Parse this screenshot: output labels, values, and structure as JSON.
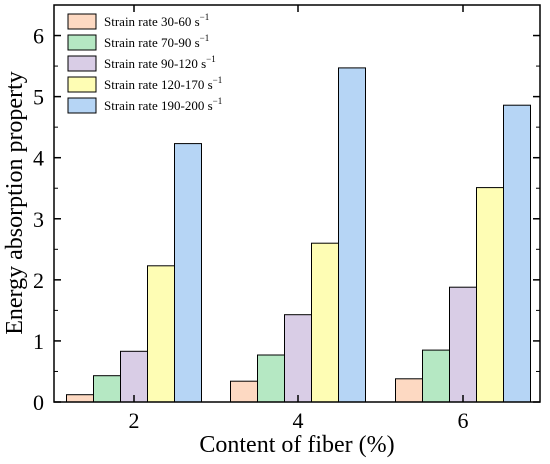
{
  "chart_data": {
    "type": "bar",
    "categories": [
      "2",
      "4",
      "6"
    ],
    "series": [
      {
        "name": "Strain rate 30-60 s",
        "superscript": "−1",
        "values": [
          0.12,
          0.34,
          0.38
        ],
        "color": "#fdd9c2"
      },
      {
        "name": "Strain rate 70-90 s",
        "superscript": "−1",
        "values": [
          0.43,
          0.77,
          0.85
        ],
        "color": "#b5e8c3"
      },
      {
        "name": "Strain rate 90-120 s",
        "superscript": "−1",
        "values": [
          0.83,
          1.43,
          1.88
        ],
        "color": "#d9cde6"
      },
      {
        "name": "Strain rate 120-170 s",
        "superscript": "−1",
        "values": [
          2.23,
          2.6,
          3.51
        ],
        "color": "#fefdb4"
      },
      {
        "name": "Strain rate 190-200 s",
        "superscript": "−1",
        "values": [
          4.23,
          5.47,
          4.86
        ],
        "color": "#b6d5f5"
      }
    ],
    "xlabel": "Content of fiber (%)",
    "ylabel": "Energy absorption property",
    "ylim": [
      0,
      6.5
    ],
    "yticks": [
      "0",
      "1",
      "2",
      "3",
      "4",
      "5",
      "6"
    ],
    "grid": false,
    "legend_position": "top-left"
  }
}
